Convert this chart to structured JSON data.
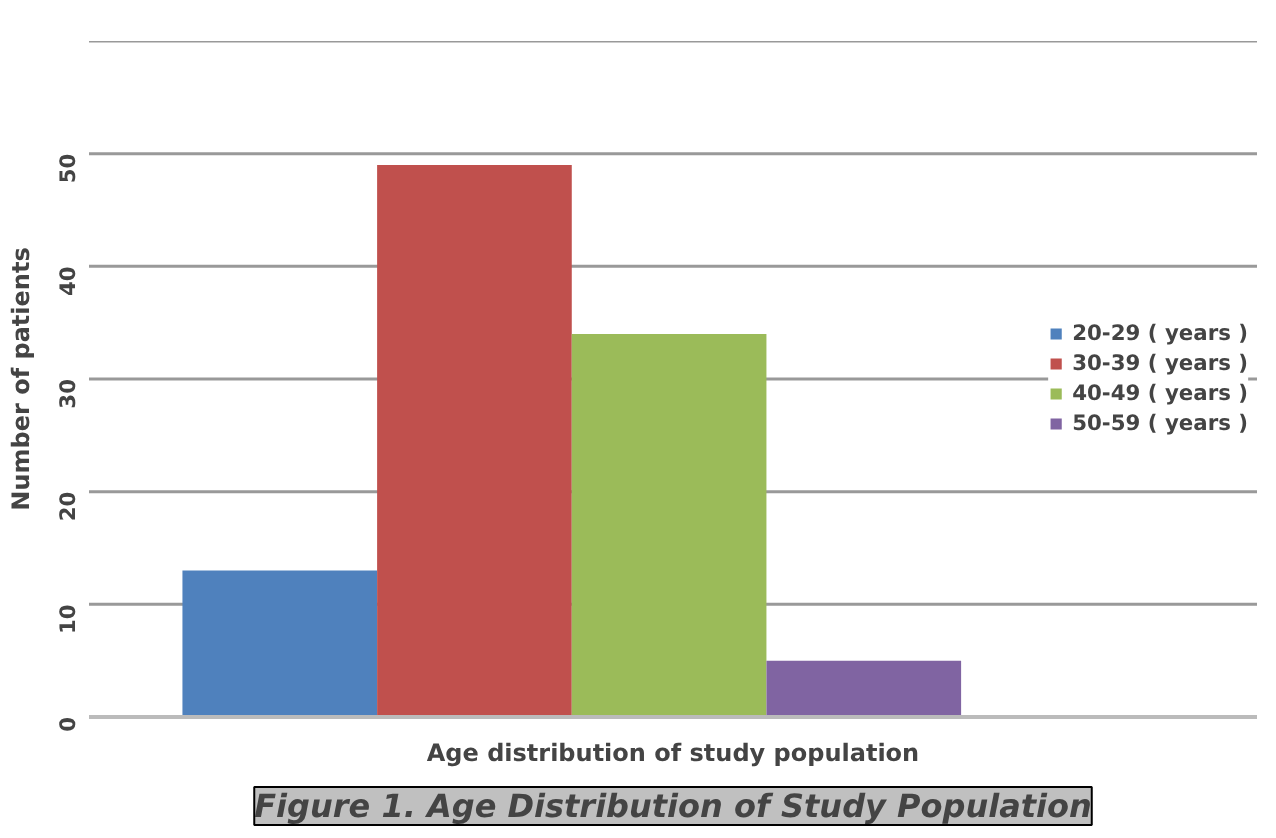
{
  "chart_data": {
    "type": "bar",
    "title": "Figure 1. Age Distribution of Study Population",
    "xlabel": "Age distribution of study population",
    "ylabel": "Number of patients",
    "categories": [
      null
    ],
    "series": [
      {
        "name": "20-29 ( years )",
        "color": "#4f81bd",
        "values": [
          13
        ]
      },
      {
        "name": "30-39 ( years )",
        "color": "#c0504d",
        "values": [
          49
        ]
      },
      {
        "name": "40-49 ( years )",
        "color": "#9bbb59",
        "values": [
          34
        ]
      },
      {
        "name": "50-59 ( years )",
        "color": "#8064a2",
        "values": [
          5
        ]
      }
    ],
    "ylim": [
      0,
      60
    ],
    "yticks": [
      0,
      10,
      20,
      30,
      40,
      50,
      {
        "value": 60,
        "label": null
      }
    ],
    "grid": "y",
    "legend": "right"
  }
}
